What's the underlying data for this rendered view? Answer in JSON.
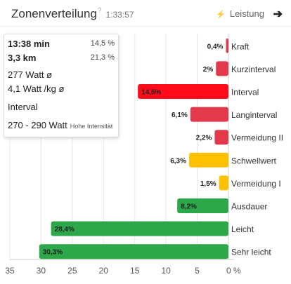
{
  "header": {
    "title": "Zonenverteilung",
    "help": "?",
    "duration": "1:33:57",
    "metric_icon": "lightning-icon",
    "metric": "Leistung",
    "arrow_icon": "arrow-right-icon"
  },
  "tooltip": {
    "time": "13:38 min",
    "time_pct": "14,5 %",
    "distance": "3,3 km",
    "distance_pct": "21,3 %",
    "power": "277 Watt ø",
    "power_per_kg": "4,1 Watt /kg ø",
    "zone": "Interval",
    "range": "270 - 290 Watt",
    "intensity": "Hohe Intensität"
  },
  "chart_data": {
    "type": "bar",
    "orientation": "horizontal",
    "x_reversed": true,
    "categories": [
      "Kraft",
      "Kurzinterval",
      "Interval",
      "Langinterval",
      "Vermeidung II",
      "Schwellwert",
      "Vermeidung I",
      "Ausdauer",
      "Leicht",
      "Sehr leicht"
    ],
    "values": [
      0.4,
      2.0,
      14.5,
      6.1,
      2.2,
      6.3,
      1.5,
      8.2,
      28.4,
      30.3
    ],
    "value_labels": [
      "0,4%",
      "2%",
      "14,5%",
      "6,1%",
      "2,2%",
      "6,3%",
      "1,5%",
      "8,2%",
      "28,4%",
      "30,3%"
    ],
    "colors": [
      "#e8364a",
      "#e23a4a",
      "#ff0a1a",
      "#e23a4a",
      "#e23a4a",
      "#ffc000",
      "#ffc000",
      "#2ca84a",
      "#2ca84a",
      "#2ca84a"
    ],
    "xlim": [
      0,
      35
    ],
    "x_ticks": [
      "35",
      "30",
      "25",
      "20",
      "15",
      "10",
      "5",
      "0 %"
    ],
    "grid": true
  }
}
